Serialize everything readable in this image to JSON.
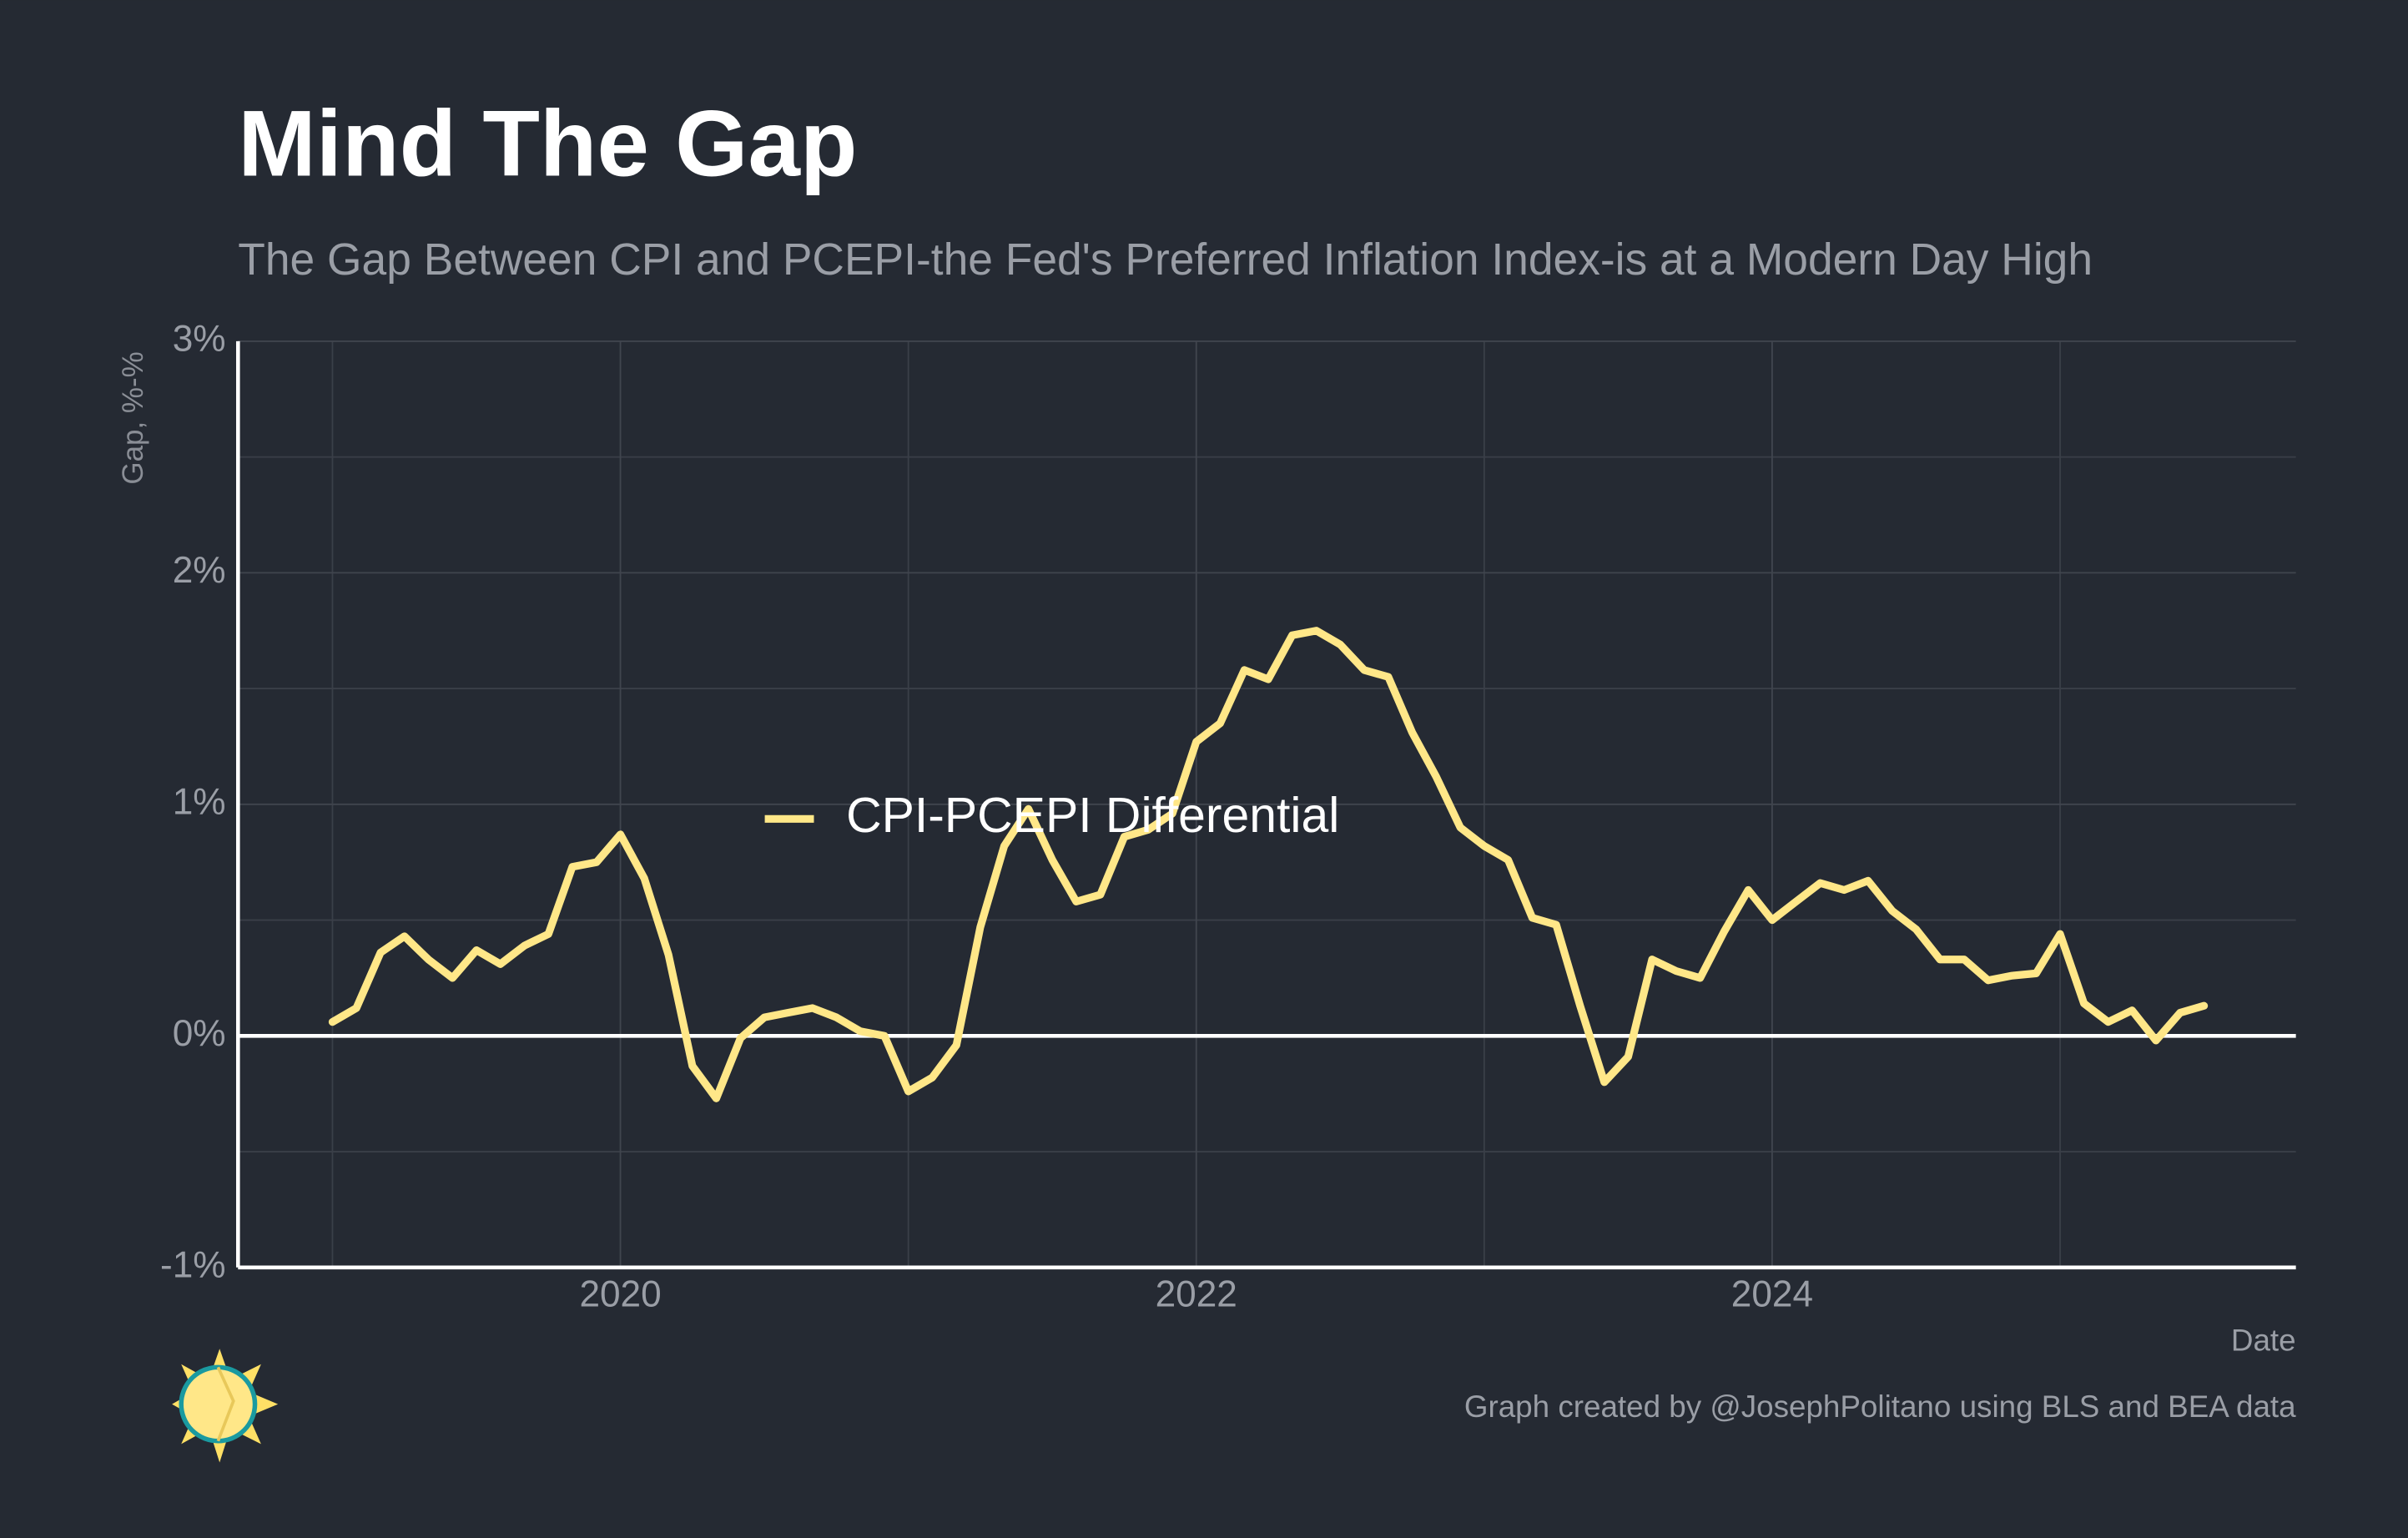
{
  "chart_data": {
    "type": "line",
    "title": "Mind The Gap",
    "subtitle": "The Gap Between CPI and PCEPI-the Fed's Preferred Inflation Index-is at a Modern Day High",
    "y_label": "Gap, %-%",
    "x_label": "Date",
    "credit": "Graph created by @JosephPolitano using BLS and BEA data",
    "x": [
      2019,
      2019.083,
      2019.167,
      2019.25,
      2019.333,
      2019.417,
      2019.5,
      2019.583,
      2019.667,
      2019.75,
      2019.833,
      2019.917,
      2020,
      2020.083,
      2020.167,
      2020.25,
      2020.333,
      2020.417,
      2020.5,
      2020.583,
      2020.667,
      2020.75,
      2020.833,
      2020.917,
      2021,
      2021.083,
      2021.167,
      2021.25,
      2021.333,
      2021.417,
      2021.5,
      2021.583,
      2021.667,
      2021.75,
      2021.833,
      2021.917,
      2022,
      2022.083,
      2022.167,
      2022.25,
      2022.333,
      2022.417,
      2022.5,
      2022.583,
      2022.667,
      2022.75,
      2022.833,
      2022.917,
      2023,
      2023.083,
      2023.167,
      2023.25,
      2023.333,
      2023.417,
      2023.5,
      2023.583,
      2023.667,
      2023.75,
      2023.833,
      2023.917,
      2024,
      2024.083,
      2024.167,
      2024.25,
      2024.333,
      2024.417,
      2024.5,
      2024.583,
      2024.667,
      2024.75,
      2024.833,
      2024.917,
      2025,
      2025.083,
      2025.167,
      2025.25,
      2025.333,
      2025.417,
      2025.5
    ],
    "series": [
      {
        "name": "CPI-PCEPI Differential",
        "color": "#ffe788",
        "values": [
          0.06,
          0.12,
          0.36,
          0.43,
          0.33,
          0.25,
          0.37,
          0.31,
          0.39,
          0.44,
          0.73,
          0.75,
          0.87,
          0.68,
          0.35,
          -0.13,
          -0.27,
          -0.01,
          0.08,
          0.1,
          0.12,
          0.08,
          0.02,
          0.0,
          -0.24,
          -0.18,
          -0.04,
          0.47,
          0.82,
          0.98,
          0.76,
          0.58,
          0.61,
          0.86,
          0.89,
          0.96,
          1.27,
          1.35,
          1.58,
          1.54,
          1.73,
          1.75,
          1.69,
          1.58,
          1.55,
          1.31,
          1.12,
          0.9,
          0.82,
          0.76,
          0.51,
          0.48,
          0.13,
          -0.2,
          -0.09,
          0.33,
          0.28,
          0.25,
          0.45,
          0.63,
          0.5,
          0.58,
          0.66,
          0.63,
          0.67,
          0.54,
          0.46,
          0.33,
          0.33,
          0.24,
          0.26,
          0.27,
          0.44,
          0.14,
          0.06,
          0.11,
          -0.02,
          0.1,
          0.13
        ]
      }
    ],
    "xlim": [
      2018.672,
      2025.819
    ],
    "ylim": [
      -1,
      3
    ],
    "xticks": [
      2020,
      2022,
      2024
    ],
    "x_minor_ticks": [
      2019,
      2021,
      2023,
      2025
    ],
    "yticks": [
      {
        "value": -1,
        "label": "-1%"
      },
      {
        "value": 0,
        "label": "0%"
      },
      {
        "value": 1,
        "label": "1%"
      },
      {
        "value": 2,
        "label": "2%"
      },
      {
        "value": 3,
        "label": "3%"
      }
    ],
    "y_minor_ticks": [
      -0.5,
      0.5,
      1.5,
      2.5
    ],
    "grid": true,
    "zero_line": true,
    "legend": "center"
  }
}
